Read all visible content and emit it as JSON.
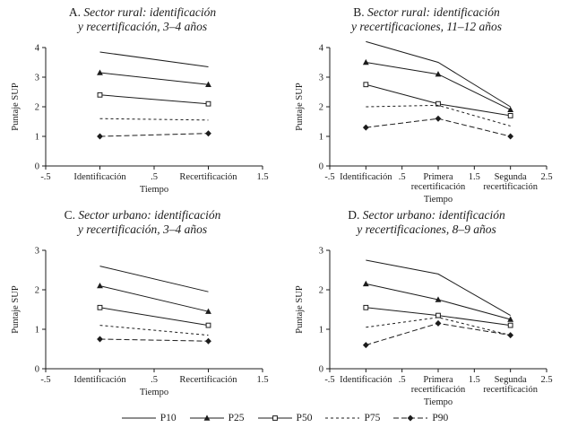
{
  "figure": {
    "legend": [
      {
        "label": "P10",
        "dash": "",
        "marker": "none"
      },
      {
        "label": "P25",
        "dash": "",
        "marker": "triangle"
      },
      {
        "label": "P50",
        "dash": "",
        "marker": "square"
      },
      {
        "label": "P75",
        "dash": "3 3",
        "marker": "none"
      },
      {
        "label": "P90",
        "dash": "6 3",
        "marker": "diamond"
      }
    ]
  },
  "chart_data": [
    {
      "type": "line",
      "panel_label": "A.",
      "title_line1": "Sector rural: identificación",
      "title_line2": "y recertificación, 3–4 años",
      "xlabel": "Tiempo",
      "ylabel": "Puntaje SUP",
      "xlim": [
        -0.5,
        1.5
      ],
      "ylim": [
        0,
        4
      ],
      "yticks": [
        0,
        1,
        2,
        3,
        4
      ],
      "xticks": [
        {
          "v": -0.5,
          "label": "-.5"
        },
        {
          "v": 0,
          "label": "Identificación"
        },
        {
          "v": 0.5,
          "label": ".5"
        },
        {
          "v": 1,
          "label": "Recertificación"
        },
        {
          "v": 1.5,
          "label": "1.5"
        }
      ],
      "x": [
        0,
        1
      ],
      "series": [
        {
          "name": "P10",
          "values": [
            3.85,
            3.35
          ]
        },
        {
          "name": "P25",
          "values": [
            3.15,
            2.75
          ]
        },
        {
          "name": "P50",
          "values": [
            2.4,
            2.1
          ]
        },
        {
          "name": "P75",
          "values": [
            1.6,
            1.55
          ]
        },
        {
          "name": "P90",
          "values": [
            1.0,
            1.1
          ]
        }
      ]
    },
    {
      "type": "line",
      "panel_label": "B.",
      "title_line1": "Sector rural: identificación",
      "title_line2": "y recertificaciones, 11–12 años",
      "xlabel": "Tiempo",
      "ylabel": "Puntaje SUP",
      "xlim": [
        -0.5,
        2.5
      ],
      "ylim": [
        0,
        4
      ],
      "yticks": [
        0,
        1,
        2,
        3,
        4
      ],
      "xticks": [
        {
          "v": -0.5,
          "label": "-.5"
        },
        {
          "v": 0,
          "label": "Identificación"
        },
        {
          "v": 0.5,
          "label": ".5"
        },
        {
          "v": 1,
          "label": "Primera\nrecertificación"
        },
        {
          "v": 1.5,
          "label": "1.5"
        },
        {
          "v": 2,
          "label": "Segunda\nrecertificación"
        },
        {
          "v": 2.5,
          "label": "2.5"
        }
      ],
      "x": [
        0,
        1,
        2
      ],
      "series": [
        {
          "name": "P10",
          "values": [
            4.2,
            3.5,
            2.0
          ]
        },
        {
          "name": "P25",
          "values": [
            3.5,
            3.1,
            1.9
          ]
        },
        {
          "name": "P50",
          "values": [
            2.75,
            2.1,
            1.7
          ]
        },
        {
          "name": "P75",
          "values": [
            2.0,
            2.05,
            1.35
          ]
        },
        {
          "name": "P90",
          "values": [
            1.3,
            1.6,
            1.0
          ]
        }
      ]
    },
    {
      "type": "line",
      "panel_label": "C.",
      "title_line1": "Sector urbano: identificación",
      "title_line2": "y recertificación, 3–4 años",
      "xlabel": "Tiempo",
      "ylabel": "Puntaje SUP",
      "xlim": [
        -0.5,
        1.5
      ],
      "ylim": [
        0,
        3
      ],
      "yticks": [
        0,
        1,
        2,
        3
      ],
      "xticks": [
        {
          "v": -0.5,
          "label": "-.5"
        },
        {
          "v": 0,
          "label": "Identificación"
        },
        {
          "v": 0.5,
          "label": ".5"
        },
        {
          "v": 1,
          "label": "Recertificación"
        },
        {
          "v": 1.5,
          "label": "1.5"
        }
      ],
      "x": [
        0,
        1
      ],
      "series": [
        {
          "name": "P10",
          "values": [
            2.6,
            1.95
          ]
        },
        {
          "name": "P25",
          "values": [
            2.1,
            1.45
          ]
        },
        {
          "name": "P50",
          "values": [
            1.55,
            1.1
          ]
        },
        {
          "name": "P75",
          "values": [
            1.1,
            0.85
          ]
        },
        {
          "name": "P90",
          "values": [
            0.75,
            0.7
          ]
        }
      ]
    },
    {
      "type": "line",
      "panel_label": "D.",
      "title_line1": "Sector urbano: identificación",
      "title_line2": "y recertificaciones, 8–9 años",
      "xlabel": "Tiempo",
      "ylabel": "Puntaje SUP",
      "xlim": [
        -0.5,
        2.5
      ],
      "ylim": [
        0,
        3
      ],
      "yticks": [
        0,
        1,
        2,
        3
      ],
      "xticks": [
        {
          "v": -0.5,
          "label": "-.5"
        },
        {
          "v": 0,
          "label": "Identificación"
        },
        {
          "v": 0.5,
          "label": ".5"
        },
        {
          "v": 1,
          "label": "Primera\nrecertificación"
        },
        {
          "v": 1.5,
          "label": "1.5"
        },
        {
          "v": 2,
          "label": "Segunda\nrecertificación"
        },
        {
          "v": 2.5,
          "label": "2.5"
        }
      ],
      "x": [
        0,
        1,
        2
      ],
      "series": [
        {
          "name": "P10",
          "values": [
            2.75,
            2.4,
            1.35
          ]
        },
        {
          "name": "P25",
          "values": [
            2.15,
            1.75,
            1.25
          ]
        },
        {
          "name": "P50",
          "values": [
            1.55,
            1.35,
            1.1
          ]
        },
        {
          "name": "P75",
          "values": [
            1.05,
            1.3,
            0.85
          ]
        },
        {
          "name": "P90",
          "values": [
            0.6,
            1.15,
            0.85
          ]
        }
      ]
    }
  ]
}
